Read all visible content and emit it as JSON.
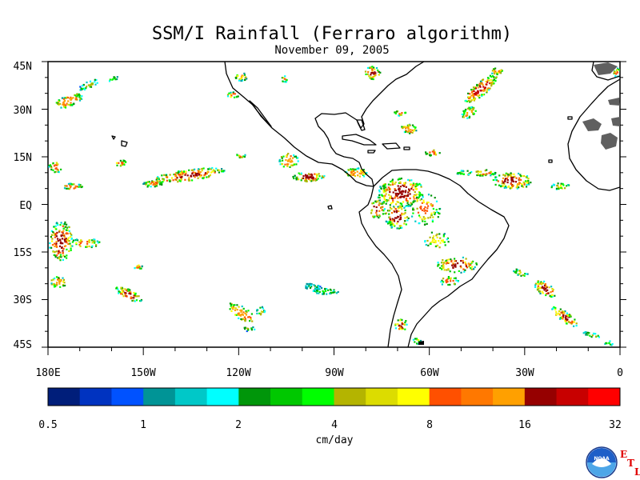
{
  "title": "SSM/I Rainfall (Ferraro algorithm)",
  "subtitle": "November 09, 2005",
  "map": {
    "lon_range": [
      -180,
      0
    ],
    "lat_range": [
      -45,
      45
    ],
    "lat_labels": [
      "45N",
      "30N",
      "15N",
      "EQ",
      "15S",
      "30S",
      "45S"
    ],
    "lon_labels": [
      "180E",
      "150W",
      "120W",
      "90W",
      "60W",
      "30W",
      "0"
    ],
    "land_color": "#606060",
    "coast_color": "#000000"
  },
  "colorbar": {
    "colors": [
      "#001e7a",
      "#0033c0",
      "#0052ff",
      "#009496",
      "#00c8c8",
      "#00ffff",
      "#00960a",
      "#00c800",
      "#00ff00",
      "#b4b400",
      "#dcdc00",
      "#ffff00",
      "#ff5000",
      "#ff7800",
      "#ffa000",
      "#960000",
      "#c80000",
      "#ff0000"
    ],
    "tick_labels": [
      "0.5",
      "1",
      "2",
      "4",
      "8",
      "16",
      "32"
    ],
    "unit": "cm/day"
  },
  "logo": {
    "text": "NOAA",
    "etl": [
      "E",
      "T",
      "L"
    ]
  }
}
